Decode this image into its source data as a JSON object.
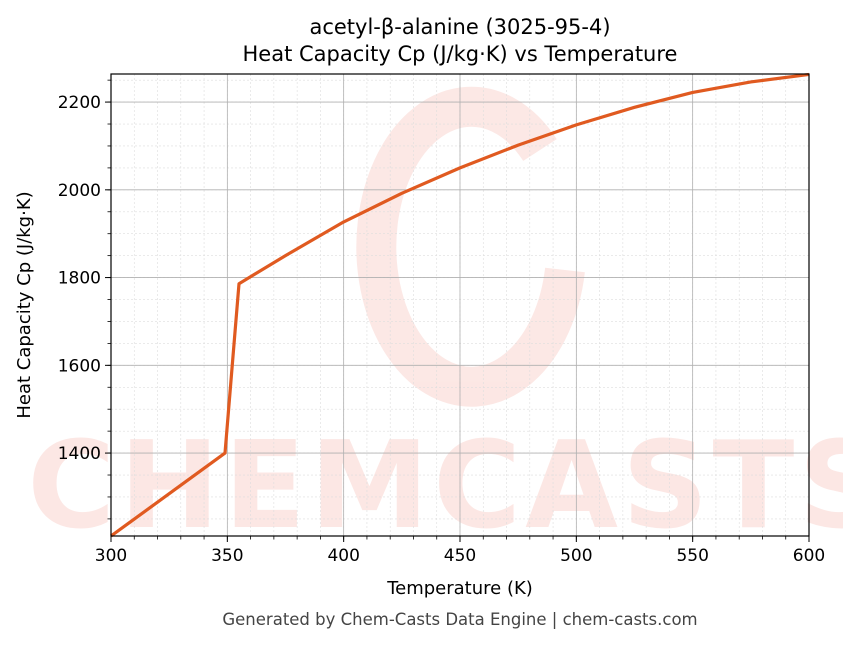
{
  "chart_data": {
    "type": "line",
    "title_line1": "acetyl-β-alanine (3025-95-4)",
    "title_line2": "Heat Capacity Cp (J/kg·K) vs Temperature",
    "xlabel": "Temperature (K)",
    "ylabel": "Heat Capacity Cp (J/kg·K)",
    "xlim": [
      300,
      600
    ],
    "ylim": [
      1211,
      2264
    ],
    "xticks": [
      300,
      350,
      400,
      450,
      500,
      550,
      600
    ],
    "yticks": [
      1400,
      1600,
      1800,
      2000,
      2200
    ],
    "grid": true,
    "series": [
      {
        "name": "Cp",
        "color": "#e05a20",
        "x": [
          300,
          349,
          355,
          375,
          400,
          425,
          450,
          475,
          500,
          525,
          550,
          575,
          600
        ],
        "y": [
          1211,
          1400,
          1786,
          1850,
          1927,
          1992,
          2050,
          2102,
          2148,
          2188,
          2222,
          2246,
          2263
        ]
      }
    ]
  },
  "watermark": "CHEMCASTS",
  "footer": "Generated by Chem-Casts Data Engine | chem-casts.com"
}
